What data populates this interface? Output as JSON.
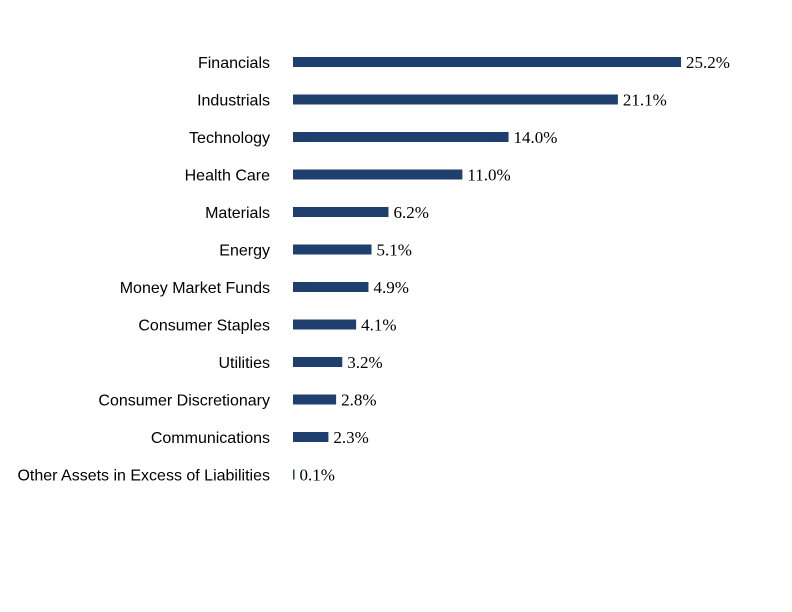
{
  "chart_data": {
    "type": "bar",
    "orientation": "horizontal",
    "title": "",
    "xlabel": "",
    "ylabel": "",
    "categories": [
      "Financials",
      "Industrials",
      "Technology",
      "Health Care",
      "Materials",
      "Energy",
      "Money Market Funds",
      "Consumer Staples",
      "Utilities",
      "Consumer Discretionary",
      "Communications",
      "Other Assets in Excess of Liabilities"
    ],
    "values": [
      25.2,
      21.1,
      14.0,
      11.0,
      6.2,
      5.1,
      4.9,
      4.1,
      3.2,
      2.8,
      2.3,
      0.1
    ],
    "value_labels": [
      "25.2%",
      "21.1%",
      "14.0%",
      "11.0%",
      "6.2%",
      "5.1%",
      "4.9%",
      "4.1%",
      "3.2%",
      "2.8%",
      "2.3%",
      "0.1%"
    ],
    "xlim": [
      0,
      25.2
    ],
    "grid": false,
    "legend": "none",
    "bar_color": "#1f3f6e"
  }
}
